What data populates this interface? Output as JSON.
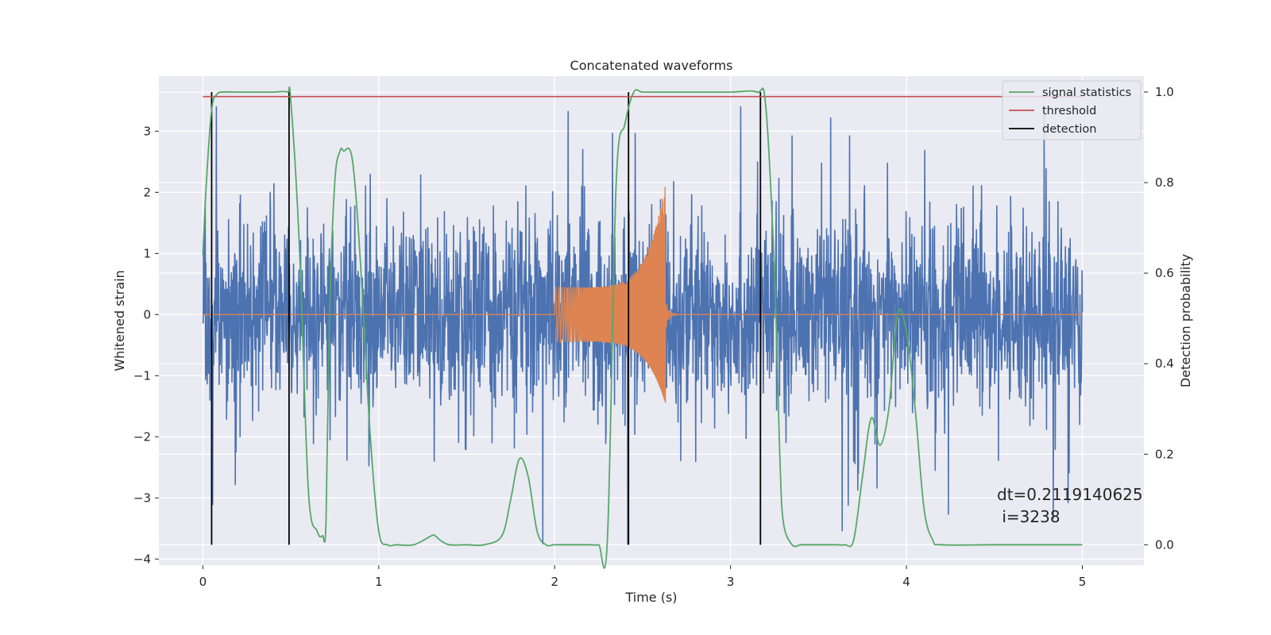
{
  "chart_data": {
    "type": "line",
    "title": "Concatenated waveforms",
    "xlabel": "Time (s)",
    "ylabel": "Whitened strain",
    "y2label": "Detection probability",
    "xlim": [
      -0.25,
      5.35
    ],
    "ylim": [
      -4.1,
      3.9
    ],
    "y2lim": [
      -0.045,
      1.035
    ],
    "x_ticks": [
      0,
      1,
      2,
      3,
      4,
      5
    ],
    "y_ticks": [
      -4,
      -3,
      -2,
      -1,
      0,
      1,
      2,
      3
    ],
    "y2_ticks": [
      0.0,
      0.2,
      0.4,
      0.6,
      0.8,
      1.0
    ],
    "x_tick_labels": [
      "0",
      "1",
      "2",
      "3",
      "4",
      "5"
    ],
    "y_tick_labels": [
      "−4",
      "−3",
      "−2",
      "−1",
      "0",
      "1",
      "2",
      "3"
    ],
    "y2_tick_labels": [
      "0.0",
      "0.2",
      "0.4",
      "0.6",
      "0.8",
      "1.0"
    ],
    "grid": true,
    "legend_position": "top-right",
    "legend": [
      {
        "name": "signal statistics",
        "color": "#55a868"
      },
      {
        "name": "threshold",
        "color": "#c44e52"
      },
      {
        "name": "detection",
        "color": "#000000"
      }
    ],
    "series": [
      {
        "name": "whitened strain",
        "axis": "left",
        "color": "#4c72b0",
        "description_note": "noise-like signal spanning 0 to 5 s, typical amplitude ±1.5, peaks up to about 3.4 and down to about -3.7"
      },
      {
        "name": "injected waveform",
        "axis": "left",
        "color": "#dd8452",
        "x_range": [
          2.0,
          2.65
        ],
        "chirp": {
          "start_x": 2.0,
          "start_amplitude": 0.45,
          "peak_x": 2.63,
          "peak_amplitude": 2.15,
          "trough_amplitude": -1.45,
          "end_x": 2.65
        }
      },
      {
        "name": "signal statistics",
        "axis": "right",
        "color": "#55a868",
        "x": [
          0.0,
          0.02,
          0.05,
          0.08,
          0.12,
          0.2,
          0.3,
          0.4,
          0.48,
          0.5,
          0.55,
          0.6,
          0.65,
          0.68,
          0.7,
          0.72,
          0.75,
          0.78,
          0.8,
          0.85,
          0.9,
          0.95,
          1.0,
          1.05,
          1.1,
          1.2,
          1.3,
          1.32,
          1.35,
          1.4,
          1.5,
          1.6,
          1.7,
          1.75,
          1.8,
          1.85,
          1.9,
          1.95,
          2.0,
          2.1,
          2.2,
          2.25,
          2.3,
          2.35,
          2.4,
          2.45,
          2.5,
          2.6,
          2.8,
          3.0,
          3.15,
          3.2,
          3.25,
          3.28,
          3.3,
          3.35,
          3.4,
          3.45,
          3.5,
          3.6,
          3.65,
          3.7,
          3.75,
          3.8,
          3.85,
          3.9,
          3.95,
          4.0,
          4.05,
          4.1,
          4.15,
          4.2,
          4.5,
          4.8,
          5.0
        ],
        "y": [
          0.64,
          0.8,
          0.96,
          0.995,
          1.0,
          1.0,
          1.0,
          1.0,
          1.0,
          0.98,
          0.65,
          0.12,
          0.03,
          0.02,
          0.05,
          0.5,
          0.8,
          0.87,
          0.87,
          0.85,
          0.6,
          0.25,
          0.03,
          0.0,
          0.0,
          0.0,
          0.02,
          0.02,
          0.01,
          0.0,
          0.0,
          0.0,
          0.02,
          0.1,
          0.19,
          0.15,
          0.03,
          0.0,
          0.0,
          0.0,
          0.0,
          0.0,
          0.01,
          0.8,
          0.93,
          1.0,
          1.0,
          1.0,
          1.0,
          1.0,
          1.0,
          0.97,
          0.6,
          0.2,
          0.05,
          0.0,
          0.0,
          0.0,
          0.0,
          0.0,
          0.0,
          0.01,
          0.15,
          0.28,
          0.22,
          0.3,
          0.51,
          0.47,
          0.3,
          0.08,
          0.01,
          0.0,
          0.0,
          0.0,
          0.0
        ]
      },
      {
        "name": "threshold",
        "axis": "right",
        "color": "#c44e52",
        "x": [
          0.0,
          5.0
        ],
        "y": [
          0.99,
          0.99
        ]
      },
      {
        "name": "detection",
        "axis": "right",
        "color": "#000000",
        "vertical_lines_x": [
          0.05,
          0.49,
          2.42,
          3.17
        ],
        "y_range": [
          0.0,
          1.0
        ]
      }
    ],
    "annotation": {
      "line1": "dt=0.2119140625",
      "line2": " i=3238"
    }
  }
}
